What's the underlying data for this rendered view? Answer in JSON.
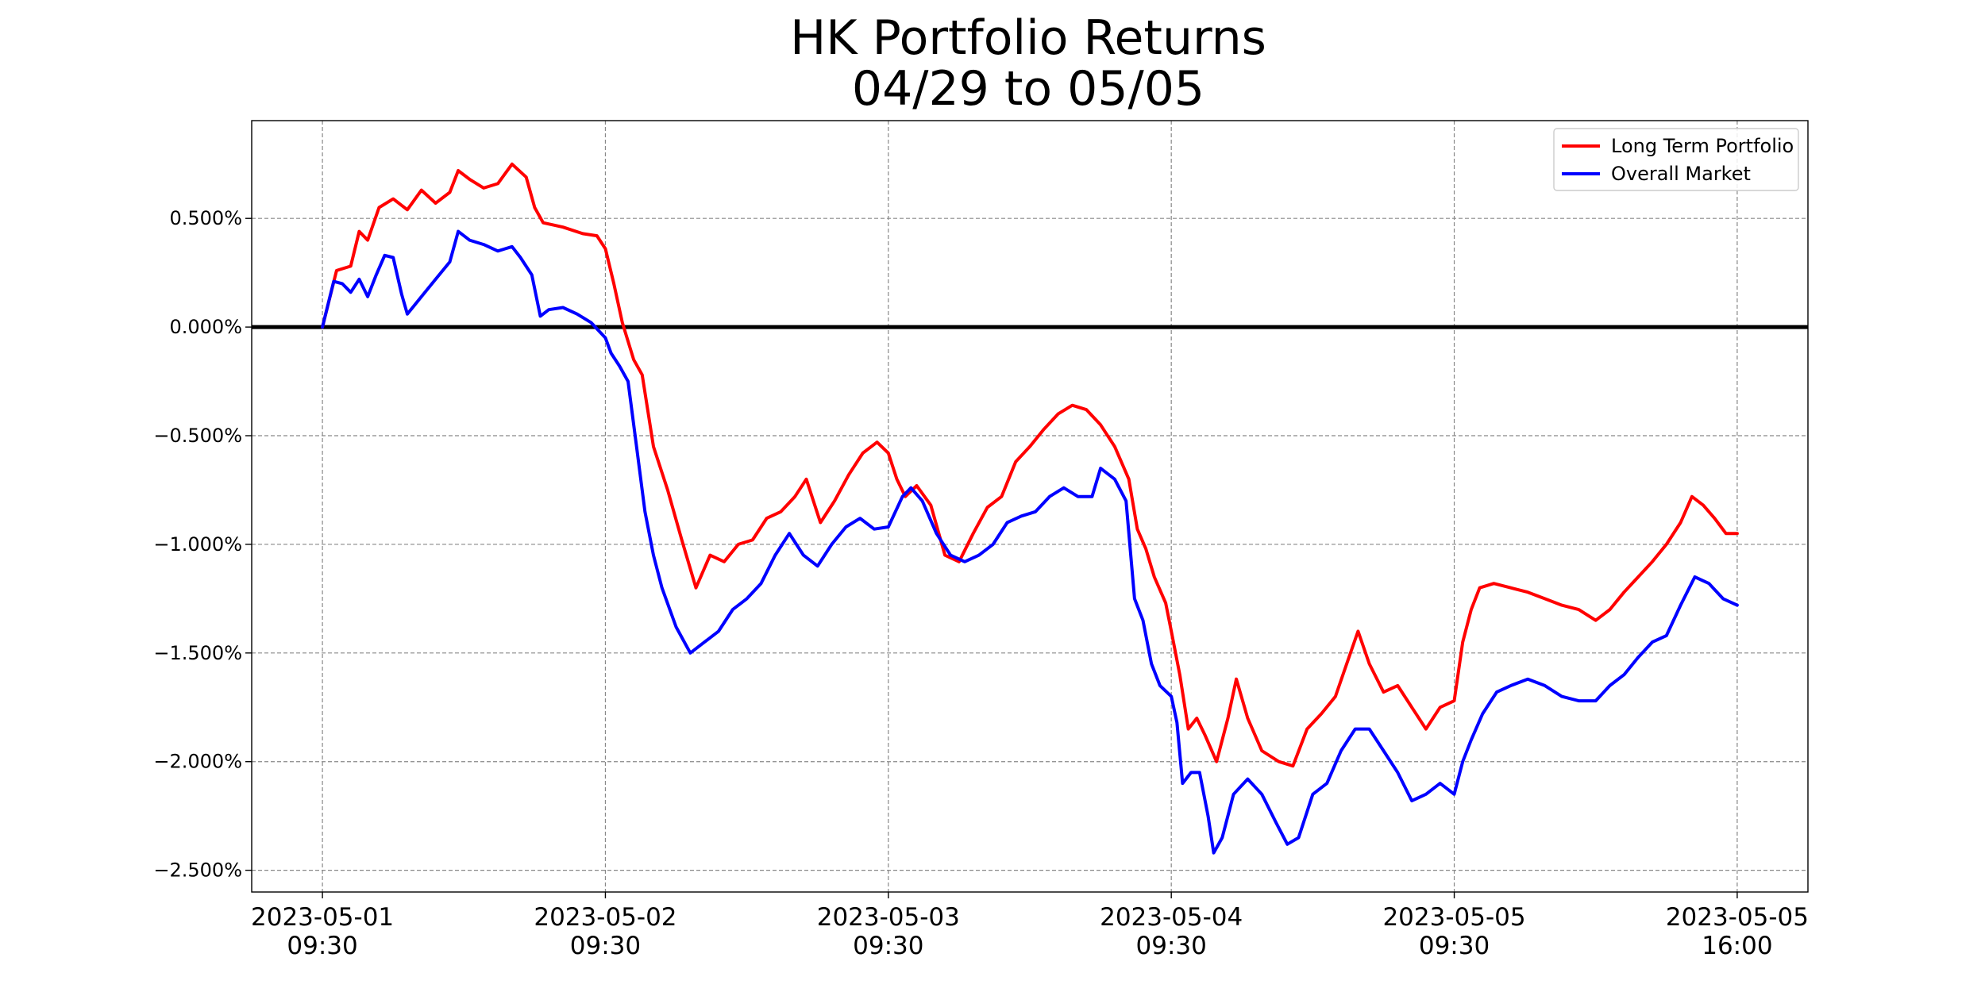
{
  "chart_data": {
    "type": "line",
    "title": [
      "HK Portfolio Returns",
      "04/29 to 05/05"
    ],
    "xlabel": "",
    "ylabel": "",
    "x_tick_labels": [
      {
        "date": "2023-05-01",
        "time": "09:30"
      },
      {
        "date": "2023-05-02",
        "time": "09:30"
      },
      {
        "date": "2023-05-03",
        "time": "09:30"
      },
      {
        "date": "2023-05-04",
        "time": "09:30"
      },
      {
        "date": "2023-05-05",
        "time": "09:30"
      },
      {
        "date": "2023-05-05",
        "time": "16:00"
      }
    ],
    "x_tick_positions": [
      0,
      1,
      2,
      3,
      4,
      5
    ],
    "xlim": [
      -0.25,
      5.25
    ],
    "ylim": [
      -2.6,
      0.95
    ],
    "y_ticks": [
      0.5,
      0.0,
      -0.5,
      -1.0,
      -1.5,
      -2.0,
      -2.5
    ],
    "y_tick_labels": [
      "0.500%",
      "0.000%",
      "−0.500%",
      "−1.000%",
      "−1.500%",
      "−2.000%",
      "−2.500%"
    ],
    "y_unit": "%",
    "x_unit": "trading days from 2023-05-01 09:30",
    "grid": true,
    "zero_line": true,
    "legend_position": "top-right",
    "series": [
      {
        "name": "Long Term Portfolio",
        "color": "#ff0000",
        "points": [
          [
            0.0,
            0.0
          ],
          [
            0.05,
            0.26
          ],
          [
            0.1,
            0.28
          ],
          [
            0.13,
            0.44
          ],
          [
            0.16,
            0.4
          ],
          [
            0.2,
            0.55
          ],
          [
            0.25,
            0.59
          ],
          [
            0.3,
            0.54
          ],
          [
            0.35,
            0.63
          ],
          [
            0.4,
            0.57
          ],
          [
            0.45,
            0.62
          ],
          [
            0.48,
            0.72
          ],
          [
            0.52,
            0.68
          ],
          [
            0.57,
            0.64
          ],
          [
            0.62,
            0.66
          ],
          [
            0.67,
            0.75
          ],
          [
            0.72,
            0.69
          ],
          [
            0.75,
            0.55
          ],
          [
            0.78,
            0.48
          ],
          [
            0.85,
            0.46
          ],
          [
            0.92,
            0.43
          ],
          [
            0.97,
            0.42
          ],
          [
            1.0,
            0.36
          ],
          [
            1.03,
            0.2
          ],
          [
            1.06,
            0.02
          ],
          [
            1.1,
            -0.15
          ],
          [
            1.13,
            -0.22
          ],
          [
            1.17,
            -0.55
          ],
          [
            1.22,
            -0.75
          ],
          [
            1.27,
            -0.98
          ],
          [
            1.32,
            -1.2
          ],
          [
            1.37,
            -1.05
          ],
          [
            1.42,
            -1.08
          ],
          [
            1.47,
            -1.0
          ],
          [
            1.52,
            -0.98
          ],
          [
            1.57,
            -0.88
          ],
          [
            1.62,
            -0.85
          ],
          [
            1.67,
            -0.78
          ],
          [
            1.71,
            -0.7
          ],
          [
            1.76,
            -0.9
          ],
          [
            1.81,
            -0.8
          ],
          [
            1.86,
            -0.68
          ],
          [
            1.91,
            -0.58
          ],
          [
            1.96,
            -0.53
          ],
          [
            2.0,
            -0.58
          ],
          [
            2.03,
            -0.7
          ],
          [
            2.06,
            -0.78
          ],
          [
            2.1,
            -0.73
          ],
          [
            2.15,
            -0.82
          ],
          [
            2.2,
            -1.05
          ],
          [
            2.25,
            -1.08
          ],
          [
            2.3,
            -0.95
          ],
          [
            2.35,
            -0.83
          ],
          [
            2.4,
            -0.78
          ],
          [
            2.45,
            -0.62
          ],
          [
            2.5,
            -0.55
          ],
          [
            2.55,
            -0.47
          ],
          [
            2.6,
            -0.4
          ],
          [
            2.65,
            -0.36
          ],
          [
            2.7,
            -0.38
          ],
          [
            2.75,
            -0.45
          ],
          [
            2.8,
            -0.55
          ],
          [
            2.85,
            -0.7
          ],
          [
            2.88,
            -0.93
          ],
          [
            2.91,
            -1.02
          ],
          [
            2.94,
            -1.15
          ],
          [
            2.98,
            -1.27
          ],
          [
            3.0,
            -1.4
          ],
          [
            3.03,
            -1.6
          ],
          [
            3.06,
            -1.85
          ],
          [
            3.09,
            -1.8
          ],
          [
            3.12,
            -1.88
          ],
          [
            3.16,
            -2.0
          ],
          [
            3.2,
            -1.8
          ],
          [
            3.23,
            -1.62
          ],
          [
            3.27,
            -1.8
          ],
          [
            3.32,
            -1.95
          ],
          [
            3.38,
            -2.0
          ],
          [
            3.43,
            -2.02
          ],
          [
            3.48,
            -1.85
          ],
          [
            3.53,
            -1.78
          ],
          [
            3.58,
            -1.7
          ],
          [
            3.62,
            -1.55
          ],
          [
            3.66,
            -1.4
          ],
          [
            3.7,
            -1.55
          ],
          [
            3.75,
            -1.68
          ],
          [
            3.8,
            -1.65
          ],
          [
            3.85,
            -1.75
          ],
          [
            3.9,
            -1.85
          ],
          [
            3.95,
            -1.75
          ],
          [
            4.0,
            -1.72
          ],
          [
            4.03,
            -1.45
          ],
          [
            4.06,
            -1.3
          ],
          [
            4.09,
            -1.2
          ],
          [
            4.14,
            -1.18
          ],
          [
            4.2,
            -1.2
          ],
          [
            4.26,
            -1.22
          ],
          [
            4.32,
            -1.25
          ],
          [
            4.38,
            -1.28
          ],
          [
            4.44,
            -1.3
          ],
          [
            4.5,
            -1.35
          ],
          [
            4.55,
            -1.3
          ],
          [
            4.6,
            -1.22
          ],
          [
            4.65,
            -1.15
          ],
          [
            4.7,
            -1.08
          ],
          [
            4.75,
            -1.0
          ],
          [
            4.8,
            -0.9
          ],
          [
            4.84,
            -0.78
          ],
          [
            4.88,
            -0.82
          ],
          [
            4.92,
            -0.88
          ],
          [
            4.96,
            -0.95
          ],
          [
            5.0,
            -0.95
          ]
        ]
      },
      {
        "name": "Overall Market",
        "color": "#0000ff",
        "points": [
          [
            0.0,
            0.0
          ],
          [
            0.04,
            0.21
          ],
          [
            0.07,
            0.2
          ],
          [
            0.1,
            0.16
          ],
          [
            0.13,
            0.22
          ],
          [
            0.16,
            0.14
          ],
          [
            0.19,
            0.24
          ],
          [
            0.22,
            0.33
          ],
          [
            0.25,
            0.32
          ],
          [
            0.28,
            0.15
          ],
          [
            0.3,
            0.06
          ],
          [
            0.35,
            0.14
          ],
          [
            0.4,
            0.22
          ],
          [
            0.45,
            0.3
          ],
          [
            0.48,
            0.44
          ],
          [
            0.52,
            0.4
          ],
          [
            0.57,
            0.38
          ],
          [
            0.62,
            0.35
          ],
          [
            0.67,
            0.37
          ],
          [
            0.7,
            0.32
          ],
          [
            0.74,
            0.24
          ],
          [
            0.77,
            0.05
          ],
          [
            0.8,
            0.08
          ],
          [
            0.85,
            0.09
          ],
          [
            0.9,
            0.06
          ],
          [
            0.95,
            0.02
          ],
          [
            1.0,
            -0.05
          ],
          [
            1.02,
            -0.12
          ],
          [
            1.05,
            -0.18
          ],
          [
            1.08,
            -0.25
          ],
          [
            1.11,
            -0.55
          ],
          [
            1.14,
            -0.85
          ],
          [
            1.17,
            -1.05
          ],
          [
            1.2,
            -1.2
          ],
          [
            1.25,
            -1.38
          ],
          [
            1.3,
            -1.5
          ],
          [
            1.35,
            -1.45
          ],
          [
            1.4,
            -1.4
          ],
          [
            1.45,
            -1.3
          ],
          [
            1.5,
            -1.25
          ],
          [
            1.55,
            -1.18
          ],
          [
            1.6,
            -1.05
          ],
          [
            1.65,
            -0.95
          ],
          [
            1.7,
            -1.05
          ],
          [
            1.75,
            -1.1
          ],
          [
            1.8,
            -1.0
          ],
          [
            1.85,
            -0.92
          ],
          [
            1.9,
            -0.88
          ],
          [
            1.95,
            -0.93
          ],
          [
            2.0,
            -0.92
          ],
          [
            2.05,
            -0.78
          ],
          [
            2.08,
            -0.74
          ],
          [
            2.12,
            -0.8
          ],
          [
            2.17,
            -0.95
          ],
          [
            2.22,
            -1.05
          ],
          [
            2.27,
            -1.08
          ],
          [
            2.32,
            -1.05
          ],
          [
            2.37,
            -1.0
          ],
          [
            2.42,
            -0.9
          ],
          [
            2.47,
            -0.87
          ],
          [
            2.52,
            -0.85
          ],
          [
            2.57,
            -0.78
          ],
          [
            2.62,
            -0.74
          ],
          [
            2.67,
            -0.78
          ],
          [
            2.72,
            -0.78
          ],
          [
            2.75,
            -0.65
          ],
          [
            2.8,
            -0.7
          ],
          [
            2.84,
            -0.8
          ],
          [
            2.87,
            -1.25
          ],
          [
            2.9,
            -1.35
          ],
          [
            2.93,
            -1.55
          ],
          [
            2.96,
            -1.65
          ],
          [
            3.0,
            -1.7
          ],
          [
            3.02,
            -1.82
          ],
          [
            3.04,
            -2.1
          ],
          [
            3.07,
            -2.05
          ],
          [
            3.1,
            -2.05
          ],
          [
            3.13,
            -2.25
          ],
          [
            3.15,
            -2.42
          ],
          [
            3.18,
            -2.35
          ],
          [
            3.22,
            -2.15
          ],
          [
            3.27,
            -2.08
          ],
          [
            3.32,
            -2.15
          ],
          [
            3.37,
            -2.28
          ],
          [
            3.41,
            -2.38
          ],
          [
            3.45,
            -2.35
          ],
          [
            3.5,
            -2.15
          ],
          [
            3.55,
            -2.1
          ],
          [
            3.6,
            -1.95
          ],
          [
            3.65,
            -1.85
          ],
          [
            3.7,
            -1.85
          ],
          [
            3.75,
            -1.95
          ],
          [
            3.8,
            -2.05
          ],
          [
            3.85,
            -2.18
          ],
          [
            3.9,
            -2.15
          ],
          [
            3.95,
            -2.1
          ],
          [
            4.0,
            -2.15
          ],
          [
            4.03,
            -2.0
          ],
          [
            4.06,
            -1.9
          ],
          [
            4.1,
            -1.78
          ],
          [
            4.15,
            -1.68
          ],
          [
            4.2,
            -1.65
          ],
          [
            4.26,
            -1.62
          ],
          [
            4.32,
            -1.65
          ],
          [
            4.38,
            -1.7
          ],
          [
            4.44,
            -1.72
          ],
          [
            4.5,
            -1.72
          ],
          [
            4.55,
            -1.65
          ],
          [
            4.6,
            -1.6
          ],
          [
            4.65,
            -1.52
          ],
          [
            4.7,
            -1.45
          ],
          [
            4.75,
            -1.42
          ],
          [
            4.8,
            -1.28
          ],
          [
            4.85,
            -1.15
          ],
          [
            4.9,
            -1.18
          ],
          [
            4.95,
            -1.25
          ],
          [
            5.0,
            -1.28
          ]
        ]
      }
    ]
  }
}
